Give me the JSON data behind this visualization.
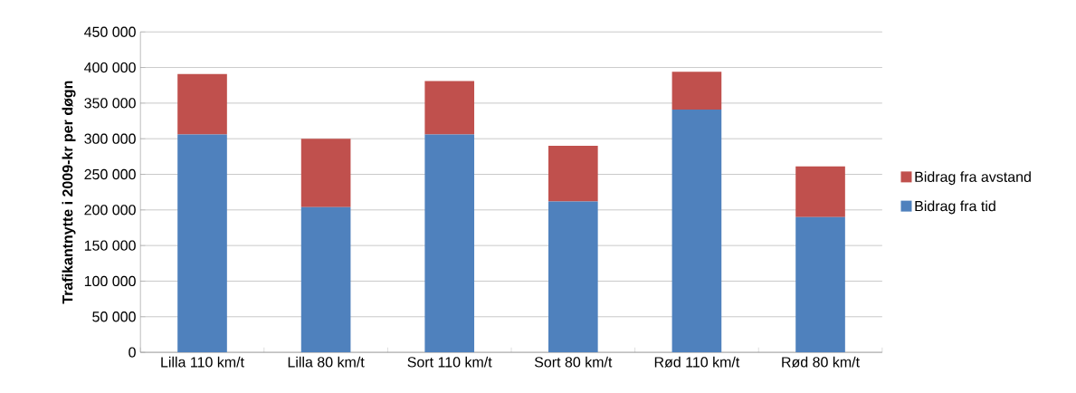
{
  "chart_data": {
    "type": "bar",
    "stacked": true,
    "ylabel": "Trafikantnytte i 2009-kr per døgn",
    "categories": [
      "Lilla 110 km/t",
      "Lilla 80 km/t",
      "Sort 110 km/t",
      "Sort 80 km/t",
      "Rød 110 km/t",
      "Rød 80 km/t"
    ],
    "series": [
      {
        "name": "Bidrag fra tid",
        "color": "#4f81bd",
        "values": [
          306000,
          204000,
          306000,
          212000,
          341000,
          190000
        ]
      },
      {
        "name": "Bidrag fra avstand",
        "color": "#c0504d",
        "values": [
          85000,
          96000,
          75000,
          78000,
          53000,
          71000
        ]
      }
    ],
    "ylim": [
      0,
      450000
    ],
    "yticks": [
      {
        "value": 0,
        "label": "0"
      },
      {
        "value": 50000,
        "label": "50 000"
      },
      {
        "value": 100000,
        "label": "100 000"
      },
      {
        "value": 150000,
        "label": "150 000"
      },
      {
        "value": 200000,
        "label": "200 000"
      },
      {
        "value": 250000,
        "label": "250 000"
      },
      {
        "value": 300000,
        "label": "300 000"
      },
      {
        "value": 350000,
        "label": "350 000"
      },
      {
        "value": 400000,
        "label": "400 000"
      },
      {
        "value": 450000,
        "label": "450 000"
      }
    ],
    "grid": "y",
    "legend": "right"
  }
}
